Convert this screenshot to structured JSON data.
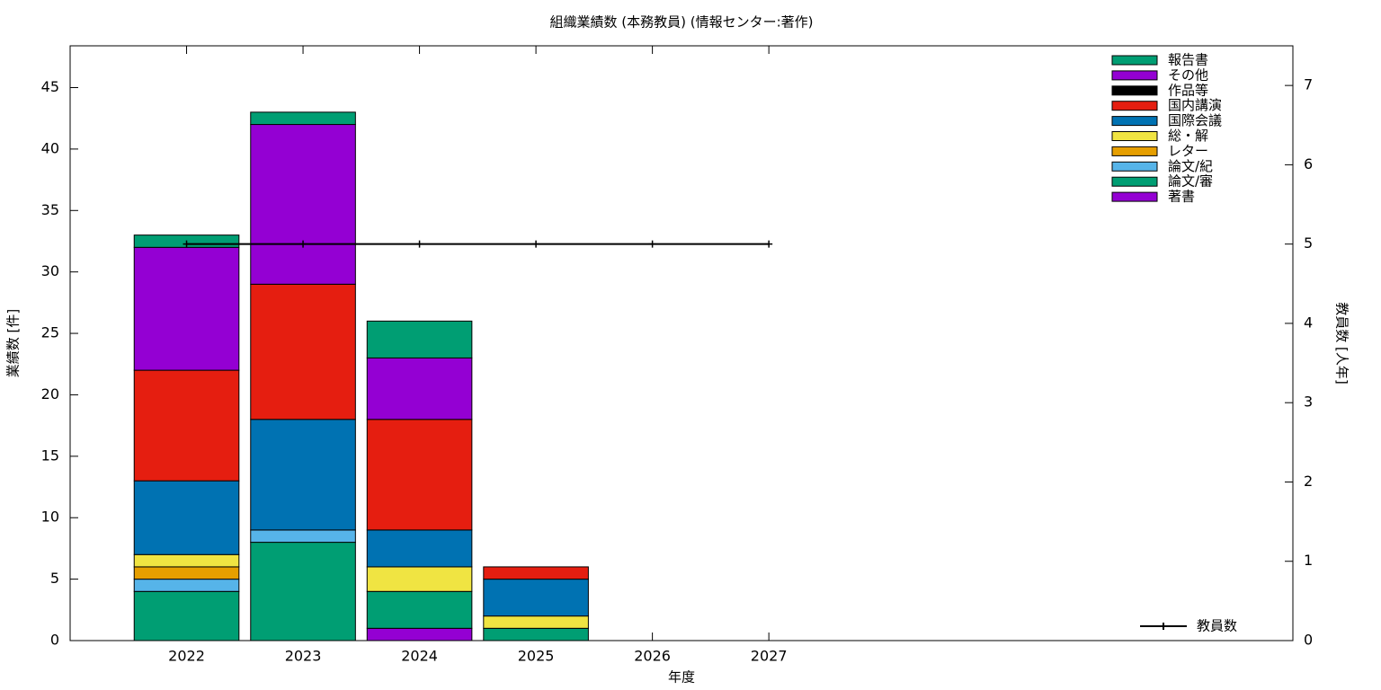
{
  "chart_data": {
    "type": "bar",
    "title": "組織業績数 (本務教員) (情報センター:著作)",
    "xlabel": "年度",
    "ylabel": "業績数 [件]",
    "y2label": "教員数 [人年]",
    "x": [
      2022,
      2023,
      2024,
      2025,
      2026,
      2027
    ],
    "xlim": [
      2021,
      2031.5
    ],
    "xticks": [
      2022,
      2023,
      2024,
      2025,
      2026,
      2027
    ],
    "ylim": [
      0,
      48.4
    ],
    "yticks": [
      0,
      5,
      10,
      15,
      20,
      25,
      30,
      35,
      40,
      45
    ],
    "y2lim": [
      0,
      7.5
    ],
    "y2ticks": [
      0,
      1,
      2,
      3,
      4,
      5,
      6,
      7
    ],
    "stacked": true,
    "series": [
      {
        "name": "著書",
        "color": "#9400d3",
        "values": [
          0,
          0,
          1,
          0,
          0,
          0
        ]
      },
      {
        "name": "論文/審",
        "color": "#009e73",
        "values": [
          4,
          8,
          3,
          1,
          0,
          0
        ]
      },
      {
        "name": "論文/紀",
        "color": "#56b4e9",
        "values": [
          1,
          1,
          0,
          0,
          0,
          0
        ]
      },
      {
        "name": "レター",
        "color": "#e69f00",
        "values": [
          1,
          0,
          0,
          0,
          0,
          0
        ]
      },
      {
        "name": "総・解",
        "color": "#f0e442",
        "values": [
          1,
          0,
          2,
          1,
          0,
          0
        ]
      },
      {
        "name": "国際会議",
        "color": "#0072b2",
        "values": [
          6,
          9,
          3,
          3,
          0,
          0
        ]
      },
      {
        "name": "国内講演",
        "color": "#e51e10",
        "values": [
          9,
          11,
          9,
          1,
          0,
          0
        ]
      },
      {
        "name": "作品等",
        "color": "#000000",
        "values": [
          0,
          0,
          0,
          0,
          0,
          0
        ]
      },
      {
        "name": "その他",
        "color": "#9400d3",
        "values": [
          10,
          13,
          5,
          0,
          0,
          0
        ]
      },
      {
        "name": "報告書",
        "color": "#009e73",
        "values": [
          1,
          1,
          3,
          0,
          0,
          0
        ]
      },
      {
        "name": "教員数",
        "color": "#000000",
        "axis": "y2",
        "values": [
          5,
          5,
          5,
          5,
          5,
          5
        ]
      }
    ]
  }
}
